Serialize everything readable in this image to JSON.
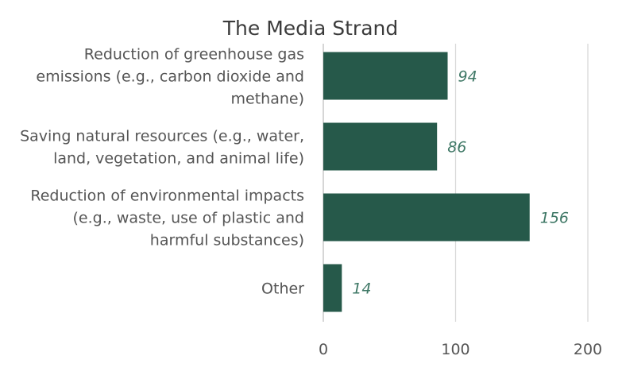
{
  "chart_data": {
    "type": "bar",
    "orientation": "horizontal",
    "title": "The Media Strand",
    "categories": [
      [
        "Reduction of greenhouse gas",
        "emissions (e.g., carbon dioxide and",
        "methane)"
      ],
      [
        "Saving natural resources (e.g., water,",
        "land, vegetation, and animal life)"
      ],
      [
        "Reduction of environmental impacts",
        "(e.g., waste, use of plastic and",
        "harmful substances)"
      ],
      [
        "Other"
      ]
    ],
    "values": [
      94,
      86,
      156,
      14
    ],
    "value_labels": [
      "94",
      "86",
      "156",
      "14"
    ],
    "xlim": [
      0,
      200
    ],
    "xticks": [
      "0",
      "100",
      "200"
    ],
    "grid": true,
    "xlabel": "",
    "ylabel": "",
    "colors": {
      "bar": "#26594a",
      "data_label": "#3f7866",
      "grid": "#d9d9d9",
      "axis": "#bfbfbf"
    }
  }
}
